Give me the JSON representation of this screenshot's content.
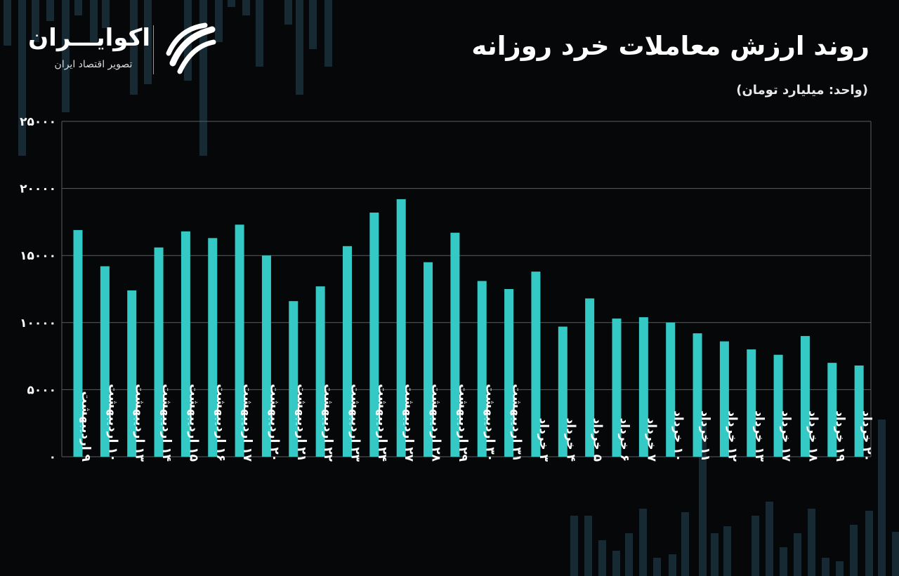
{
  "header": {
    "title": "روند ارزش معاملات خرد روزانه",
    "unit": "(واحد: میلیارد تومان)"
  },
  "logo": {
    "name": "اکوایـــران",
    "tagline": "تصویر اقتصاد ایران",
    "icon": "ecoiran-swirl-icon"
  },
  "colors": {
    "background": "#050708",
    "bar": "#35c9c6",
    "grid": "#5a5f62",
    "text": "#ffffff",
    "decor": "#172a34"
  },
  "chart_data": {
    "type": "bar",
    "title": "روند ارزش معاملات خرد روزانه",
    "ylabel": "(واحد: میلیارد تومان)",
    "xlabel": "",
    "ylim": [
      0,
      25000
    ],
    "yticks": [
      0,
      5000,
      10000,
      15000,
      20000,
      25000
    ],
    "ytick_labels": [
      "۰",
      "۵۰۰۰",
      "۱۰۰۰۰",
      "۱۵۰۰۰",
      "۲۰۰۰۰",
      "۲۵۰۰۰"
    ],
    "grid": true,
    "legend": "none",
    "categories": [
      "۹ اردیبهشت",
      "۱۰ اردیبهشت",
      "۱۳ اردیبهشت",
      "۱۴ اردیبهشت",
      "۱۵ اردیبهشت",
      "۱۶ اردیبهشت",
      "۱۷ اردیبهشت",
      "۲۰ اردیبهشت",
      "۲۱ اردیبهشت",
      "۲۲ اردیبهشت",
      "۲۳ اردیبهشت",
      "۲۴ اردیبهشت",
      "۲۷ اردیبهشت",
      "۲۸ اردیبهشت",
      "۲۹ اردیبهشت",
      "۳۰ اردیبهشت",
      "۳۱ اردیبهشت",
      "۳ خرداد",
      "۴ خرداد",
      "۵ خرداد",
      "۶ خرداد",
      "۷ خرداد",
      "۱۰ خرداد",
      "۱۱ خرداد",
      "۱۲ خرداد",
      "۱۳ خرداد",
      "۱۷ خرداد",
      "۱۸ خرداد",
      "۱۹ خرداد",
      "۲۰ خرداد"
    ],
    "values": [
      16900,
      14200,
      12400,
      15600,
      16800,
      16300,
      17300,
      15000,
      11600,
      12700,
      15700,
      18200,
      19200,
      14500,
      16700,
      13100,
      12500,
      13800,
      9700,
      11800,
      10300,
      10400,
      10000,
      9200,
      8600,
      8000,
      7600,
      9000,
      7000,
      6800
    ]
  }
}
